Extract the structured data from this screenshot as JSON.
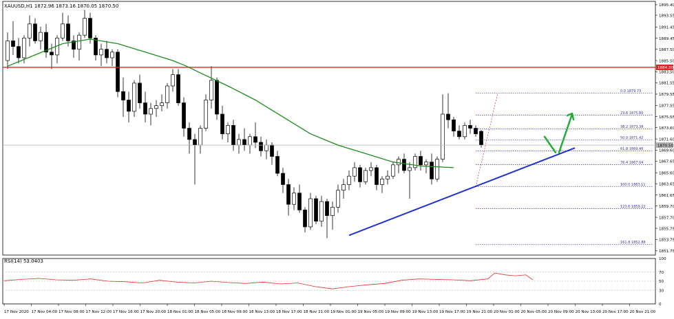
{
  "chart_data": [
    {
      "type": "candlestick",
      "title": "XAUUSD,H1  1872.96 1873.16 1870.05 1870.50",
      "symbol": "XAUUSD,H1",
      "ohlc_header": [
        "1872.96",
        "1873.16",
        "1870.05",
        "1870.50"
      ],
      "ylim": [
        1851.0,
        1896.0
      ],
      "y_ticks": [
        "1895.40",
        "1893.55",
        "1891.45",
        "1889.45",
        "1887.50",
        "1885.50",
        "1883.50",
        "1881.55",
        "1879.55",
        "1877.55",
        "1875.55",
        "1873.60",
        "1871.60",
        "1869.60",
        "1867.65",
        "1865.60",
        "1863.65",
        "1861.65",
        "1859.70",
        "1857.70",
        "1855.75",
        "1853.75",
        "1851.75"
      ],
      "candles": [
        [
          1885.5,
          1890.5,
          1884.0,
          1889.0
        ],
        [
          1889.0,
          1892.5,
          1886.5,
          1888.0
        ],
        [
          1888.0,
          1889.5,
          1885.0,
          1886.0
        ],
        [
          1886.0,
          1890.0,
          1885.0,
          1889.5
        ],
        [
          1889.5,
          1893.5,
          1888.0,
          1892.0
        ],
        [
          1892.0,
          1893.0,
          1888.5,
          1889.0
        ],
        [
          1889.0,
          1891.5,
          1887.5,
          1890.5
        ],
        [
          1890.5,
          1892.0,
          1886.0,
          1887.0
        ],
        [
          1887.0,
          1888.5,
          1884.0,
          1886.5
        ],
        [
          1886.5,
          1890.0,
          1885.0,
          1889.5
        ],
        [
          1889.5,
          1894.0,
          1889.0,
          1892.0
        ],
        [
          1892.0,
          1893.5,
          1888.0,
          1889.0
        ],
        [
          1889.0,
          1890.0,
          1886.0,
          1887.5
        ],
        [
          1887.5,
          1890.5,
          1885.5,
          1890.0
        ],
        [
          1890.0,
          1894.5,
          1889.5,
          1893.0
        ],
        [
          1893.0,
          1894.0,
          1888.5,
          1889.5
        ],
        [
          1889.5,
          1890.0,
          1885.5,
          1886.5
        ],
        [
          1886.5,
          1888.5,
          1884.5,
          1887.5
        ],
        [
          1887.5,
          1889.0,
          1885.0,
          1886.0
        ],
        [
          1886.0,
          1887.5,
          1884.5,
          1887.0
        ],
        [
          1887.0,
          1887.5,
          1879.0,
          1880.0
        ],
        [
          1880.0,
          1882.5,
          1875.5,
          1878.5
        ],
        [
          1878.5,
          1880.0,
          1874.5,
          1876.5
        ],
        [
          1876.5,
          1882.0,
          1875.5,
          1881.5
        ],
        [
          1881.5,
          1883.0,
          1877.0,
          1878.0
        ],
        [
          1878.0,
          1880.0,
          1874.5,
          1876.0
        ],
        [
          1876.0,
          1878.0,
          1874.0,
          1877.0
        ],
        [
          1877.0,
          1878.5,
          1875.5,
          1877.5
        ],
        [
          1877.5,
          1879.5,
          1876.5,
          1878.0
        ],
        [
          1878.0,
          1881.5,
          1877.0,
          1881.0
        ],
        [
          1881.0,
          1884.0,
          1880.0,
          1883.0
        ],
        [
          1883.0,
          1884.0,
          1877.5,
          1878.0
        ],
        [
          1878.0,
          1879.0,
          1872.0,
          1873.5
        ],
        [
          1873.5,
          1874.5,
          1869.0,
          1871.5
        ],
        [
          1871.5,
          1872.5,
          1863.5,
          1870.5
        ],
        [
          1870.5,
          1874.0,
          1869.0,
          1873.5
        ],
        [
          1873.5,
          1879.5,
          1873.0,
          1878.5
        ],
        [
          1878.5,
          1884.5,
          1877.0,
          1882.0
        ],
        [
          1882.0,
          1882.5,
          1875.0,
          1876.0
        ],
        [
          1876.0,
          1877.5,
          1871.5,
          1872.5
        ],
        [
          1872.5,
          1874.5,
          1871.0,
          1874.0
        ],
        [
          1874.0,
          1875.0,
          1869.5,
          1870.5
        ],
        [
          1870.5,
          1872.5,
          1869.0,
          1871.5
        ],
        [
          1871.5,
          1873.5,
          1869.5,
          1870.5
        ],
        [
          1870.5,
          1872.5,
          1869.0,
          1872.0
        ],
        [
          1872.0,
          1874.5,
          1870.0,
          1871.0
        ],
        [
          1871.0,
          1872.0,
          1868.5,
          1869.5
        ],
        [
          1869.5,
          1871.5,
          1868.0,
          1870.5
        ],
        [
          1870.5,
          1871.0,
          1867.0,
          1868.5
        ],
        [
          1868.5,
          1869.5,
          1865.0,
          1865.5
        ],
        [
          1865.5,
          1866.5,
          1862.0,
          1863.5
        ],
        [
          1863.5,
          1864.5,
          1858.0,
          1860.0
        ],
        [
          1860.0,
          1863.0,
          1859.0,
          1862.0
        ],
        [
          1862.0,
          1863.5,
          1858.5,
          1859.0
        ],
        [
          1859.0,
          1859.5,
          1855.0,
          1856.0
        ],
        [
          1856.0,
          1862.0,
          1855.5,
          1861.0
        ],
        [
          1861.0,
          1861.5,
          1856.5,
          1857.0
        ],
        [
          1857.0,
          1861.5,
          1856.0,
          1860.5
        ],
        [
          1860.5,
          1861.0,
          1854.0,
          1858.0
        ],
        [
          1858.0,
          1860.5,
          1855.5,
          1859.5
        ],
        [
          1859.5,
          1863.5,
          1858.5,
          1862.5
        ],
        [
          1862.5,
          1864.5,
          1861.0,
          1863.5
        ],
        [
          1863.5,
          1866.0,
          1862.5,
          1865.0
        ],
        [
          1865.0,
          1867.5,
          1864.0,
          1866.5
        ],
        [
          1866.5,
          1867.0,
          1863.0,
          1864.0
        ],
        [
          1864.0,
          1866.5,
          1863.5,
          1866.0
        ],
        [
          1866.0,
          1867.5,
          1865.0,
          1866.5
        ],
        [
          1866.5,
          1867.0,
          1862.5,
          1863.5
        ],
        [
          1863.5,
          1865.0,
          1862.0,
          1864.5
        ],
        [
          1864.5,
          1866.0,
          1863.5,
          1865.0
        ],
        [
          1865.0,
          1867.5,
          1864.5,
          1867.0
        ],
        [
          1867.0,
          1868.5,
          1865.5,
          1868.0
        ],
        [
          1868.0,
          1869.0,
          1865.5,
          1866.0
        ],
        [
          1866.0,
          1867.5,
          1861.0,
          1866.5
        ],
        [
          1866.5,
          1869.0,
          1866.0,
          1868.5
        ],
        [
          1868.5,
          1869.5,
          1866.0,
          1867.0
        ],
        [
          1867.0,
          1868.0,
          1865.5,
          1867.5
        ],
        [
          1867.5,
          1869.0,
          1863.5,
          1864.5
        ],
        [
          1864.5,
          1868.5,
          1864.0,
          1868.0
        ],
        [
          1868.0,
          1879.5,
          1867.5,
          1876.0
        ],
        [
          1876.0,
          1879.7,
          1873.5,
          1875.0
        ],
        [
          1875.0,
          1875.5,
          1872.0,
          1873.0
        ],
        [
          1873.0,
          1874.0,
          1871.5,
          1872.0
        ],
        [
          1872.0,
          1874.5,
          1871.5,
          1874.0
        ],
        [
          1874.0,
          1875.0,
          1872.5,
          1873.5
        ],
        [
          1873.5,
          1874.0,
          1872.0,
          1872.5
        ],
        [
          1872.96,
          1873.16,
          1870.05,
          1870.5
        ]
      ],
      "x_tick_labels": [
        "17 Nov 2020",
        "17 Nov 04:00",
        "17 Nov 08:00",
        "17 Nov 12:00",
        "17 Nov 16:00",
        "17 Nov 20:00",
        "18 Nov 01:00",
        "18 Nov 05:00",
        "18 Nov 09:00",
        "18 Nov 13:00",
        "18 Nov 17:00",
        "18 Nov 21:00",
        "19 Nov 01:00",
        "19 Nov 05:00",
        "19 Nov 09:00",
        "19 Nov 13:00",
        "19 Nov 17:00",
        "19 Nov 21:00",
        "20 Nov 01:00",
        "20 Nov 05:00",
        "20 Nov 09:00",
        "20 Nov 13:00",
        "20 Nov 17:00",
        "20 Nov 21:00"
      ],
      "moving_average": {
        "color": "#1a8c1a",
        "values": [
          [
            0,
            1884.5
          ],
          [
            10,
            1886.5
          ],
          [
            20,
            1888.5
          ],
          [
            30,
            1889.3
          ],
          [
            40,
            1888.5
          ],
          [
            50,
            1887.0
          ],
          [
            60,
            1885.5
          ],
          [
            65,
            1884.5
          ],
          [
            70,
            1883.3
          ],
          [
            80,
            1881.0
          ],
          [
            90,
            1878.5
          ],
          [
            100,
            1875.5
          ],
          [
            110,
            1872.5
          ],
          [
            120,
            1870.5
          ],
          [
            130,
            1869.0
          ],
          [
            140,
            1867.5
          ],
          [
            150,
            1866.8
          ],
          [
            162,
            1866.5
          ]
        ]
      },
      "horizontal_levels": [
        {
          "value": 1884.3,
          "label": "1884.30",
          "color": "#e02020"
        },
        {
          "value": 1870.5,
          "label": "1870.50",
          "color": "#b0b0b0"
        }
      ],
      "fibonacci": [
        {
          "label": "0.0 1879.73",
          "value": 1879.73
        },
        {
          "label": "23.6 1875.80",
          "value": 1875.8
        },
        {
          "label": "38.2 1873.38",
          "value": 1873.38
        },
        {
          "label": "50.0 1871.42",
          "value": 1871.42
        },
        {
          "label": "61.8 1869.46",
          "value": 1869.46
        },
        {
          "label": "76.4 1867.04",
          "value": 1867.04
        },
        {
          "label": "100.0 1863.11",
          "value": 1863.11
        },
        {
          "label": "123.6 1859.22",
          "value": 1859.22
        },
        {
          "label": "161.8 1852.88",
          "value": 1852.88
        }
      ],
      "trendline": {
        "color": "#1f2fcc",
        "from": [
          100,
          1854.5
        ],
        "to": [
          166,
          1870.0
        ]
      },
      "arrow_color": "#22aa33"
    },
    {
      "type": "line",
      "title": "RSI(14) 53.0403",
      "ylim": [
        0,
        100
      ],
      "y_ticks": [
        "100",
        "70",
        "50",
        "30",
        "0"
      ],
      "color": "#e03030",
      "values": [
        [
          0,
          51
        ],
        [
          5,
          54
        ],
        [
          10,
          56
        ],
        [
          15,
          53
        ],
        [
          20,
          52
        ],
        [
          25,
          55
        ],
        [
          30,
          50
        ],
        [
          35,
          49
        ],
        [
          40,
          46
        ],
        [
          45,
          52
        ],
        [
          50,
          48
        ],
        [
          55,
          46
        ],
        [
          60,
          50
        ],
        [
          65,
          47
        ],
        [
          70,
          45
        ],
        [
          75,
          48
        ],
        [
          80,
          44
        ],
        [
          85,
          46
        ],
        [
          90,
          38
        ],
        [
          95,
          33
        ],
        [
          100,
          38
        ],
        [
          105,
          42
        ],
        [
          110,
          45
        ],
        [
          115,
          52
        ],
        [
          120,
          55
        ],
        [
          125,
          54
        ],
        [
          130,
          53
        ],
        [
          135,
          51
        ],
        [
          140,
          55
        ],
        [
          142,
          68
        ],
        [
          145,
          64
        ],
        [
          148,
          62
        ],
        [
          151,
          64
        ],
        [
          153,
          53
        ]
      ]
    }
  ]
}
